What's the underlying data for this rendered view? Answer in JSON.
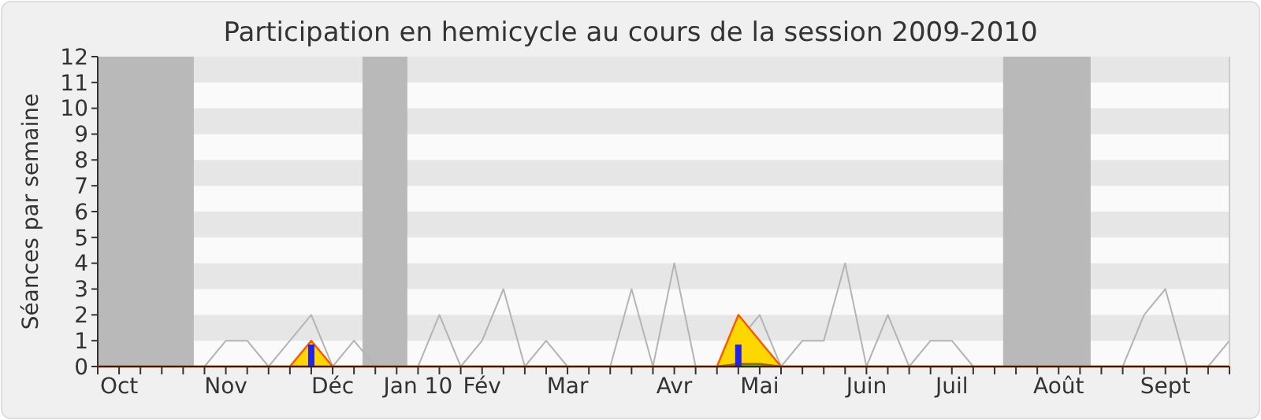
{
  "chart_data": {
    "type": "line",
    "title": "Participation en hemicycle au cours de la session 2009-2010",
    "ylabel": "Séances par semaine",
    "categories": [
      null,
      "Oct",
      null,
      null,
      null,
      null,
      "Nov",
      null,
      null,
      null,
      null,
      "Déc",
      null,
      null,
      null,
      "Jan 10",
      null,
      null,
      "Fév",
      null,
      null,
      null,
      "Mar",
      null,
      null,
      null,
      null,
      "Avr",
      null,
      null,
      null,
      "Mai",
      null,
      null,
      null,
      null,
      "Juin",
      null,
      null,
      null,
      "Juil",
      null,
      null,
      null,
      null,
      "Août",
      null,
      null,
      null,
      null,
      "Sept",
      null,
      null,
      null
    ],
    "ylim": [
      0,
      12
    ],
    "yticks": [
      0,
      1,
      2,
      3,
      4,
      5,
      6,
      7,
      8,
      9,
      10,
      11,
      12
    ],
    "series": [
      {
        "color": "#b4b4b4",
        "values": [
          0,
          0,
          0,
          0,
          0,
          0,
          1,
          1,
          0,
          1,
          2,
          0,
          1,
          0,
          0,
          0,
          2,
          0,
          1,
          3,
          0,
          1,
          0,
          0,
          0,
          3,
          0,
          4,
          0,
          0,
          null,
          2,
          0,
          1,
          1,
          4,
          0,
          2,
          0,
          1,
          1,
          0,
          0,
          0,
          0,
          0,
          0,
          0,
          0,
          2,
          3,
          0,
          0,
          1
        ]
      },
      {
        "type": "area",
        "color": "#ffd700",
        "values": [
          0,
          0,
          0,
          0,
          0,
          0,
          0,
          0,
          0,
          0,
          1,
          0,
          0,
          0,
          0,
          0,
          0,
          0,
          0,
          0,
          0,
          0,
          0,
          0,
          0,
          0,
          0,
          0,
          0,
          0,
          2,
          1,
          0,
          0,
          0,
          0,
          0,
          0,
          0,
          0,
          0,
          0,
          0,
          0,
          0,
          0,
          0,
          0,
          0,
          0,
          0,
          0,
          0,
          0
        ]
      },
      {
        "type": "area",
        "color": "#00ff00",
        "values": [
          0,
          0,
          0,
          0,
          0,
          0,
          0,
          0,
          0,
          0,
          0,
          0,
          0,
          0,
          0,
          0,
          0,
          0,
          0,
          0,
          0,
          0,
          0,
          0,
          0,
          0,
          0,
          0,
          0,
          0,
          0.1,
          0.1,
          0,
          0,
          0,
          0,
          0,
          0,
          0,
          0,
          0,
          0,
          0,
          0,
          0,
          0,
          0,
          0,
          0,
          0,
          0,
          0,
          0,
          0
        ]
      },
      {
        "type": "bar",
        "color": "#2222ee",
        "values": [
          null,
          null,
          null,
          null,
          null,
          null,
          null,
          null,
          null,
          null,
          0.85,
          null,
          null,
          null,
          null,
          null,
          null,
          null,
          null,
          null,
          null,
          null,
          null,
          null,
          null,
          null,
          null,
          null,
          null,
          null,
          0.85,
          null,
          null,
          null,
          null,
          null,
          null,
          null,
          null,
          null,
          null,
          null,
          null,
          null,
          null,
          null,
          null,
          null,
          null,
          null,
          null,
          null,
          null,
          null
        ]
      }
    ]
  }
}
